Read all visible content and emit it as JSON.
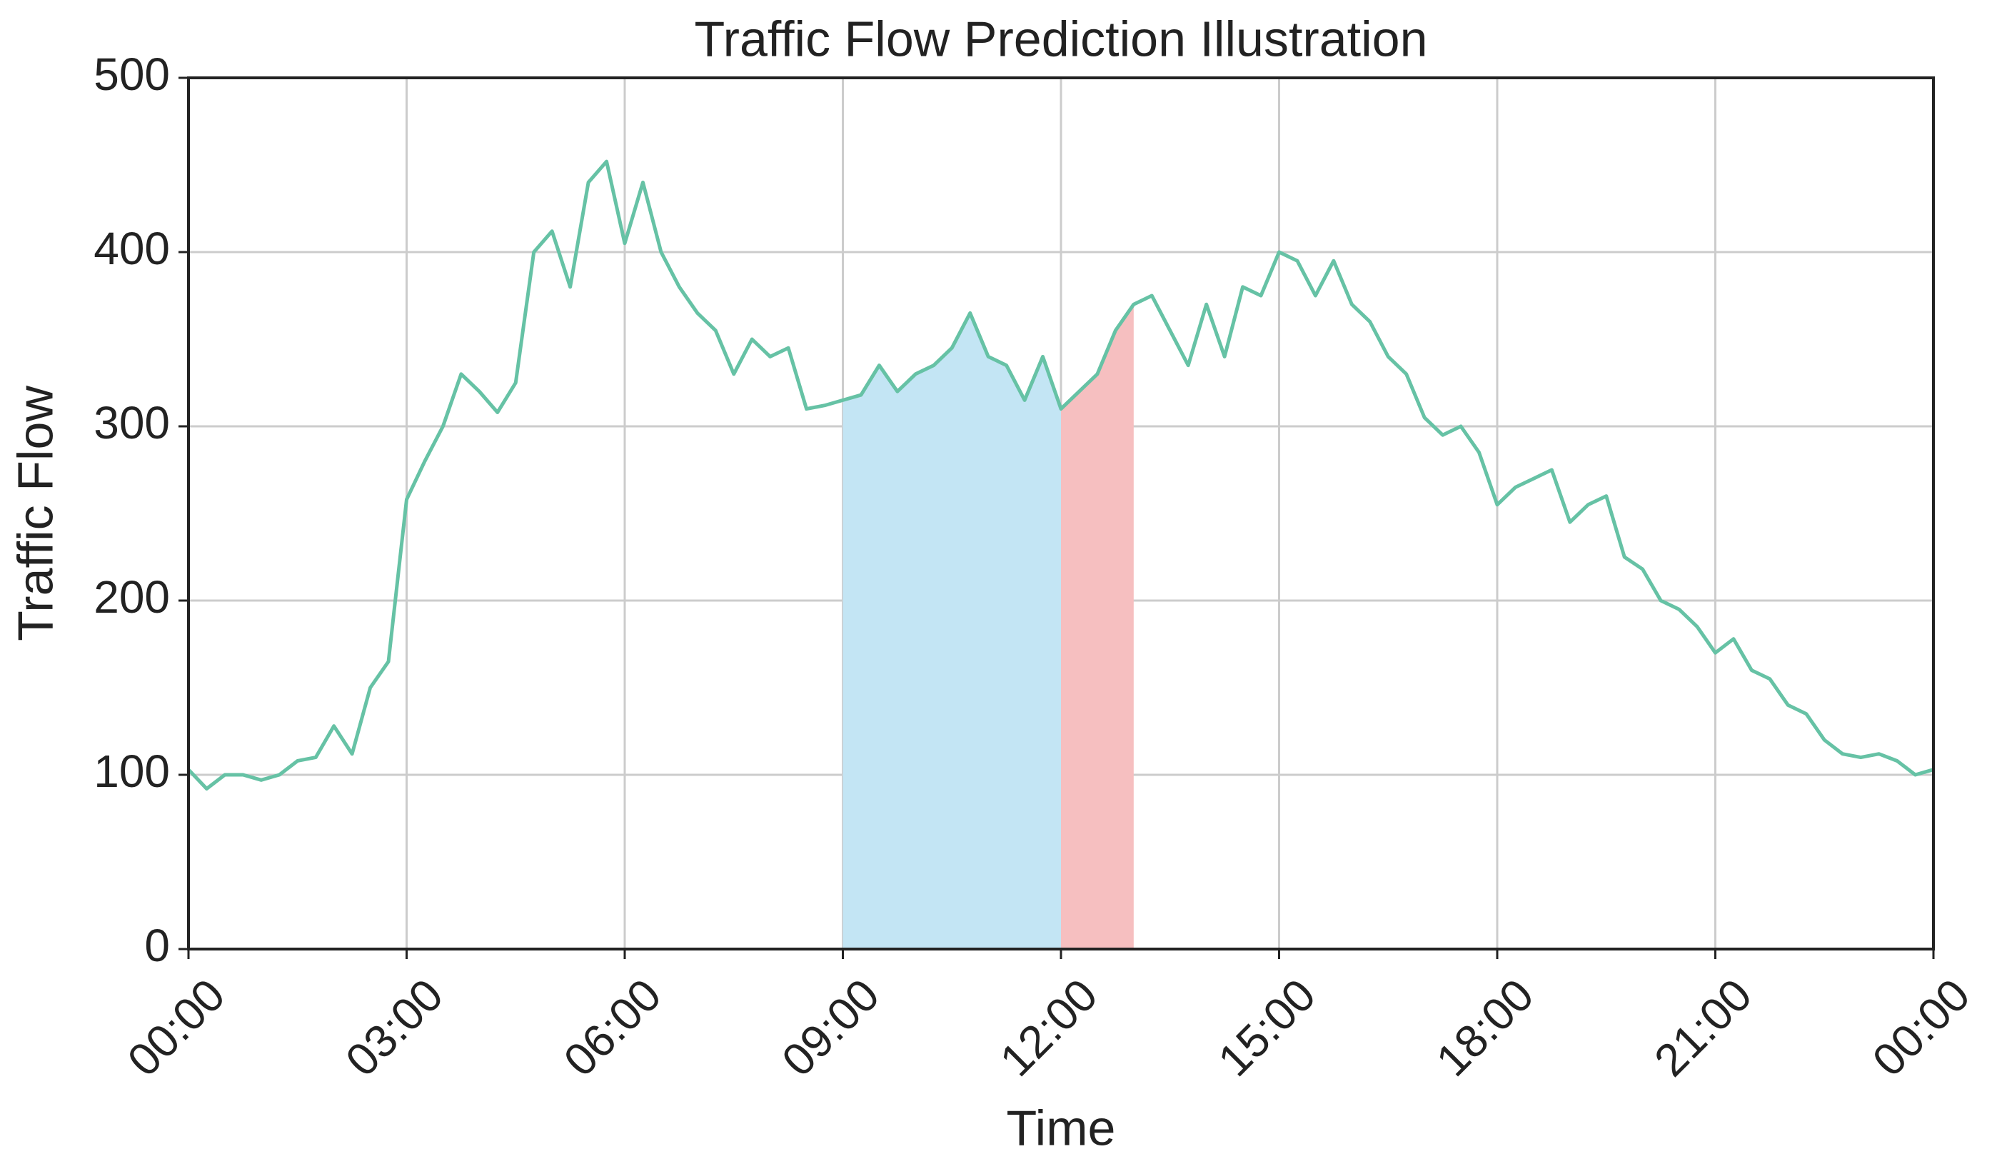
{
  "chart_data": {
    "type": "line",
    "title": "Traffic Flow Prediction Illustration",
    "x_label": "Time",
    "y_label": "Traffic Flow",
    "x": [
      0,
      0.25,
      0.5,
      0.75,
      1,
      1.25,
      1.5,
      1.75,
      2,
      2.25,
      2.5,
      2.75,
      3,
      3.25,
      3.5,
      3.75,
      4,
      4.25,
      4.5,
      4.75,
      5,
      5.25,
      5.5,
      5.75,
      6,
      6.25,
      6.5,
      6.75,
      7,
      7.25,
      7.5,
      7.75,
      8,
      8.25,
      8.5,
      8.75,
      9,
      9.25,
      9.5,
      9.75,
      10,
      10.25,
      10.5,
      10.75,
      11,
      11.25,
      11.5,
      11.75,
      12,
      12.25,
      12.5,
      12.75,
      13,
      13.25,
      13.5,
      13.75,
      14,
      14.25,
      14.5,
      14.75,
      15,
      15.25,
      15.5,
      15.75,
      16,
      16.25,
      16.5,
      16.75,
      17,
      17.25,
      17.5,
      17.75,
      18,
      18.25,
      18.5,
      18.75,
      19,
      19.25,
      19.5,
      19.75,
      20,
      20.25,
      20.5,
      20.75,
      21,
      21.25,
      21.5,
      21.75,
      22,
      22.25,
      22.5,
      22.75,
      23,
      23.25,
      23.5,
      23.75,
      24
    ],
    "series": [
      {
        "color": "#66c2a5",
        "values": [
          103,
          92,
          100,
          100,
          97,
          100,
          108,
          110,
          128,
          112,
          150,
          165,
          258,
          280,
          300,
          330,
          320,
          308,
          325,
          400,
          412,
          380,
          440,
          452,
          405,
          440,
          400,
          380,
          365,
          355,
          330,
          350,
          340,
          345,
          310,
          312,
          315,
          318,
          335,
          320,
          330,
          335,
          345,
          365,
          340,
          335,
          315,
          340,
          310,
          320,
          330,
          355,
          370,
          375,
          355,
          335,
          370,
          340,
          380,
          375,
          400,
          395,
          375,
          395,
          370,
          360,
          340,
          330,
          305,
          295,
          300,
          285,
          255,
          265,
          270,
          275,
          245,
          255,
          260,
          225,
          218,
          200,
          195,
          185,
          170,
          178,
          160,
          155,
          140,
          135,
          120,
          112,
          110,
          112,
          108,
          100,
          103
        ]
      }
    ],
    "regions": [
      {
        "start": 9,
        "end": 12,
        "color": "#c3e5f4"
      },
      {
        "start": 12,
        "end": 13,
        "color": "#f6bfc0"
      }
    ],
    "xlim": [
      0,
      24
    ],
    "xticks": [
      {
        "value": 0,
        "label": "00:00"
      },
      {
        "value": 3,
        "label": "03:00"
      },
      {
        "value": 6,
        "label": "06:00"
      },
      {
        "value": 9,
        "label": "09:00"
      },
      {
        "value": 12,
        "label": "12:00"
      },
      {
        "value": 15,
        "label": "15:00"
      },
      {
        "value": 18,
        "label": "18:00"
      },
      {
        "value": 21,
        "label": "21:00"
      },
      {
        "value": 24,
        "label": "00:00"
      }
    ],
    "ylim": [
      0,
      500
    ],
    "yticks": [
      0,
      100,
      200,
      300,
      400,
      500
    ],
    "grid": true
  }
}
